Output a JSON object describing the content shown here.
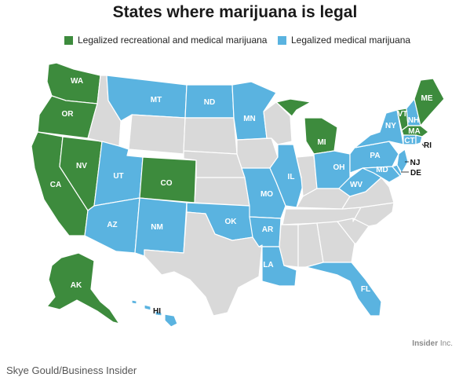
{
  "title": "States where marijuana is legal",
  "legend": {
    "recreational": {
      "label": "Legalized recreational and medical marijuana",
      "color": "#3d8b3d"
    },
    "medical": {
      "label": "Legalized medical marijuana",
      "color": "#5ab3e0"
    }
  },
  "colors": {
    "none": "#d9d9d9"
  },
  "states": {
    "recreational": [
      "WA",
      "OR",
      "CA",
      "NV",
      "CO",
      "AK",
      "MI",
      "VT",
      "MA",
      "ME"
    ],
    "medical": [
      "MT",
      "ND",
      "MN",
      "UT",
      "AZ",
      "NM",
      "OK",
      "AR",
      "LA",
      "MO",
      "IL",
      "OH",
      "PA",
      "NY",
      "NH",
      "CT",
      "RI",
      "NJ",
      "DE",
      "MD",
      "WV",
      "FL",
      "HI"
    ]
  },
  "labels": {
    "WA": "WA",
    "OR": "OR",
    "CA": "CA",
    "NV": "NV",
    "CO": "CO",
    "AK": "AK",
    "MI": "MI",
    "VT": "VT",
    "MA": "MA",
    "ME": "ME",
    "MT": "MT",
    "ND": "ND",
    "MN": "MN",
    "UT": "UT",
    "AZ": "AZ",
    "NM": "NM",
    "OK": "OK",
    "AR": "AR",
    "LA": "LA",
    "MO": "MO",
    "IL": "IL",
    "OH": "OH",
    "PA": "PA",
    "NY": "NY",
    "NH": "NH",
    "CT": "CT",
    "RI": "RI",
    "NJ": "NJ",
    "DE": "DE",
    "MD": "MD",
    "WV": "WV",
    "FL": "FL",
    "HI": "HI"
  },
  "brand": {
    "bold": "Insider",
    "rest": " Inc."
  },
  "credit": "Skye Gould/Business Insider"
}
